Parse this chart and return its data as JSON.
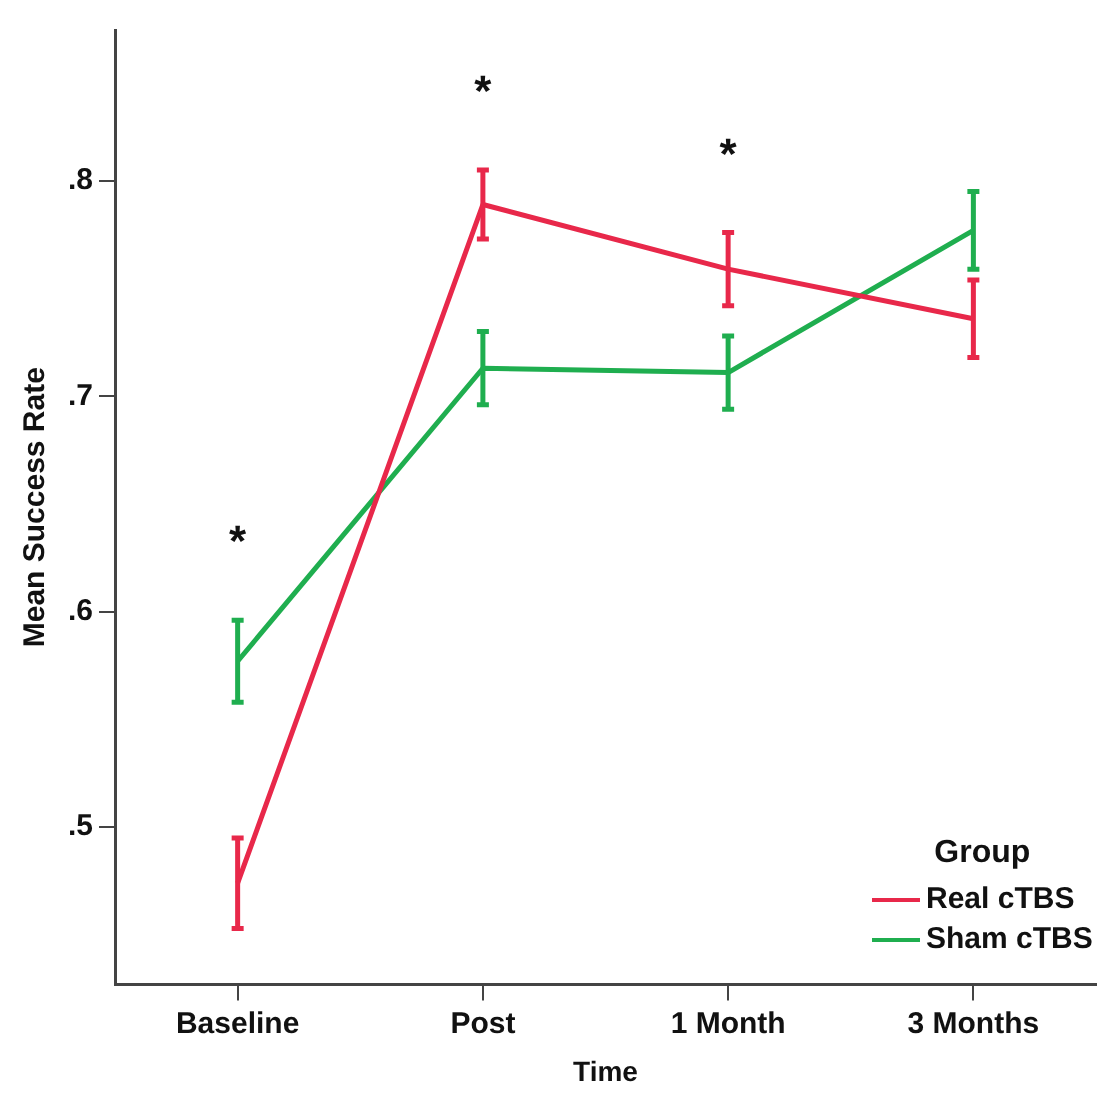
{
  "chart_data": {
    "type": "line",
    "xlabel": "Time",
    "ylabel": "Mean Success Rate",
    "legend_title": "Group",
    "legend": "bottom right",
    "grid": false,
    "marker": "none",
    "line_style": "solid",
    "categories": [
      "Baseline",
      "Post",
      "1 Month",
      "3 Months"
    ],
    "ylim": [
      0.427,
      0.87
    ],
    "yticks": [
      {
        "value": 0.5,
        "label": ".5"
      },
      {
        "value": 0.6,
        "label": ".6"
      },
      {
        "value": 0.7,
        "label": ".7"
      },
      {
        "value": 0.8,
        "label": ".8"
      }
    ],
    "series": [
      {
        "name": "Real cTBS",
        "color": "#e8284a",
        "values": [
          0.474,
          0.789,
          0.759,
          0.736
        ],
        "errors": [
          0.021,
          0.016,
          0.017,
          0.018
        ]
      },
      {
        "name": "Sham cTBS",
        "color": "#1fae4f",
        "values": [
          0.577,
          0.713,
          0.711,
          0.777
        ],
        "errors": [
          0.019,
          0.017,
          0.017,
          0.018
        ]
      }
    ],
    "annotations": [
      "*",
      "*",
      "*"
    ]
  }
}
